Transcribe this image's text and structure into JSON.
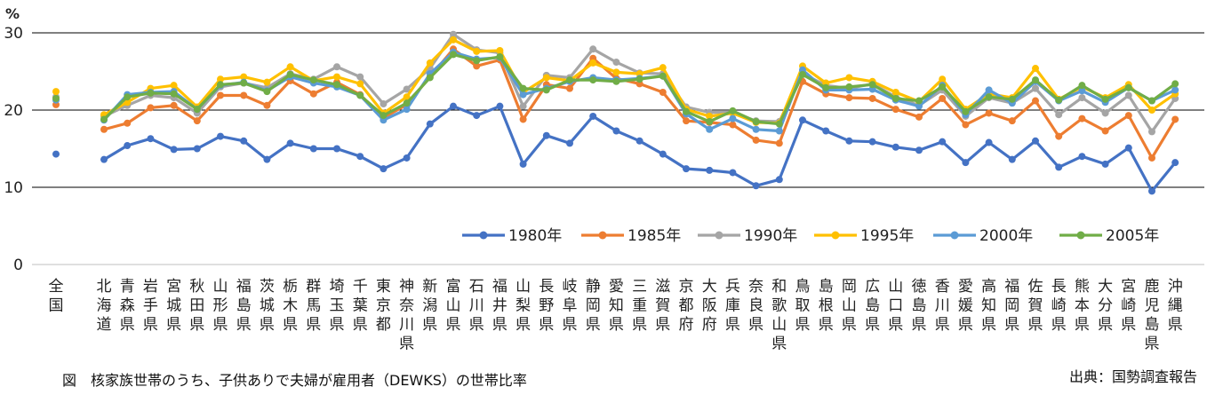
{
  "caption": "図　核家族世帯のうち、子供ありで夫婦が雇用者（DEWKS）の世帯比率",
  "source": "出典：国勢調査報告",
  "chart_data": {
    "type": "line",
    "unit_label": "%",
    "ylim": [
      0,
      30
    ],
    "yticks": [
      "0",
      "10",
      "20",
      "30"
    ],
    "grid": true,
    "legend_position": "lower-right inside plot",
    "categories": [
      "全国",
      "北海道",
      "青森県",
      "岩手県",
      "宮城県",
      "秋田県",
      "山形県",
      "福島県",
      "茨城県",
      "栃木県",
      "群馬県",
      "埼玉県",
      "千葉県",
      "東京都",
      "神奈川県",
      "新潟県",
      "富山県",
      "石川県",
      "福井県",
      "山梨県",
      "長野県",
      "岐阜県",
      "静岡県",
      "愛知県",
      "三重県",
      "滋賀県",
      "京都府",
      "大阪府",
      "兵庫県",
      "奈良県",
      "和歌山県",
      "鳥取県",
      "島根県",
      "岡山県",
      "広島県",
      "山口県",
      "徳島県",
      "香川県",
      "愛媛県",
      "高知県",
      "福岡県",
      "佐賀県",
      "長崎県",
      "熊本県",
      "大分県",
      "宮崎県",
      "鹿児島県",
      "沖縄県"
    ],
    "series": [
      {
        "name": "1980年",
        "color": "#4472C4",
        "values": [
          14.3,
          13.6,
          15.4,
          16.3,
          14.9,
          15.0,
          16.6,
          16.0,
          13.6,
          15.7,
          15.0,
          15.0,
          14.0,
          12.4,
          13.8,
          18.2,
          20.5,
          19.3,
          20.5,
          13.0,
          16.7,
          15.7,
          19.2,
          17.3,
          16.0,
          14.3,
          12.4,
          12.2,
          11.9,
          10.2,
          11.0,
          18.7,
          17.3,
          16.0,
          15.9,
          15.2,
          14.8,
          15.9,
          13.2,
          15.8,
          13.6,
          16.0,
          12.6,
          14.0,
          13.0,
          15.1,
          9.5,
          13.2
        ]
      },
      {
        "name": "1985年",
        "color": "#ED7D31",
        "values": [
          20.7,
          17.5,
          18.3,
          20.3,
          20.6,
          18.6,
          21.9,
          21.9,
          20.6,
          23.8,
          22.1,
          23.6,
          22.0,
          19.0,
          20.7,
          24.3,
          27.9,
          25.7,
          26.5,
          18.8,
          23.3,
          22.8,
          26.7,
          24.1,
          23.4,
          22.3,
          18.6,
          18.4,
          18.1,
          16.1,
          15.7,
          23.7,
          22.1,
          21.6,
          21.5,
          20.1,
          19.1,
          21.5,
          18.1,
          19.6,
          18.6,
          21.2,
          16.6,
          18.9,
          17.3,
          19.3,
          13.8,
          18.8
        ]
      },
      {
        "name": "1990年",
        "color": "#A5A5A5",
        "values": [
          21.7,
          19.2,
          20.6,
          21.9,
          21.6,
          19.6,
          23.0,
          23.5,
          22.9,
          24.7,
          24.0,
          25.6,
          24.3,
          20.8,
          22.7,
          25.4,
          29.8,
          27.8,
          27.4,
          20.5,
          24.5,
          24.2,
          27.9,
          26.2,
          24.8,
          24.7,
          20.4,
          19.7,
          19.7,
          18.6,
          18.5,
          24.7,
          23.2,
          22.8,
          23.4,
          21.7,
          20.6,
          22.6,
          19.2,
          21.6,
          20.9,
          22.8,
          19.4,
          21.6,
          19.6,
          21.9,
          17.2,
          21.5
        ]
      },
      {
        "name": "1995年",
        "color": "#FFC000",
        "values": [
          22.4,
          19.4,
          21.0,
          22.8,
          23.2,
          20.4,
          24.0,
          24.3,
          23.6,
          25.6,
          23.8,
          24.3,
          23.4,
          19.6,
          21.7,
          26.1,
          29.1,
          27.6,
          27.7,
          22.3,
          24.2,
          23.8,
          26.1,
          24.9,
          24.7,
          25.5,
          20.1,
          19.2,
          19.6,
          18.4,
          18.3,
          25.7,
          23.5,
          24.2,
          23.7,
          22.3,
          21.1,
          24.0,
          20.1,
          22.1,
          21.6,
          25.4,
          21.4,
          23.0,
          21.6,
          23.3,
          20.0,
          22.1
        ]
      },
      {
        "name": "2000年",
        "color": "#5B9BD5",
        "values": [
          21.3,
          18.7,
          22.0,
          22.3,
          22.4,
          20.1,
          23.2,
          23.6,
          22.5,
          24.3,
          23.5,
          23.0,
          21.9,
          18.7,
          20.1,
          24.7,
          27.5,
          26.6,
          26.8,
          22.0,
          22.8,
          23.7,
          24.2,
          23.9,
          24.1,
          24.4,
          19.5,
          17.5,
          18.9,
          17.5,
          17.3,
          25.2,
          22.6,
          22.6,
          22.7,
          21.3,
          20.5,
          23.2,
          19.4,
          22.6,
          20.9,
          23.7,
          21.2,
          22.5,
          21.0,
          22.9,
          21.2,
          22.6
        ]
      },
      {
        "name": "2005年",
        "color": "#70AD47",
        "values": [
          21.5,
          18.8,
          21.7,
          22.2,
          22.1,
          20.1,
          23.3,
          23.5,
          22.4,
          24.6,
          23.9,
          23.3,
          21.9,
          19.3,
          20.9,
          24.2,
          27.2,
          26.4,
          26.9,
          22.8,
          22.6,
          23.9,
          23.9,
          23.7,
          24.0,
          24.4,
          19.8,
          18.5,
          19.9,
          18.5,
          18.2,
          24.6,
          22.9,
          23.0,
          23.3,
          21.5,
          21.2,
          23.0,
          19.8,
          21.7,
          21.4,
          23.9,
          21.3,
          23.2,
          21.4,
          22.9,
          21.2,
          23.4
        ]
      }
    ]
  }
}
